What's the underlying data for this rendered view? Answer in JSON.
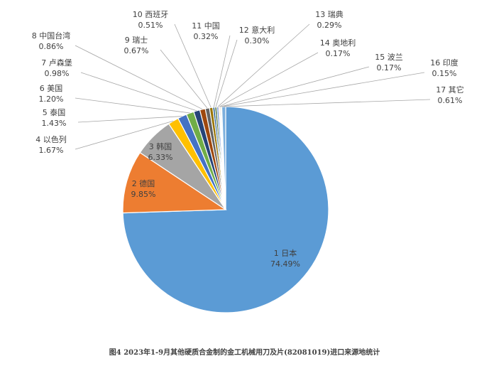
{
  "caption": "图4 2023年1-9月其他硬质合金制的金工机械用刀及片(82081019)进口来源地统计",
  "chart_data": {
    "type": "pie",
    "title": "图4 2023年1-9月其他硬质合金制的金工机械用刀及片(82081019)进口来源地统计",
    "categories": [
      "1 日本",
      "2 德国",
      "3 韩国",
      "4 以色列",
      "5 泰国",
      "6 美国",
      "7 卢森堡",
      "8 中国台湾",
      "9 瑞士",
      "10 西班牙",
      "11 中国",
      "12 意大利",
      "13 瑞典",
      "14 奥地利",
      "15 波兰",
      "16 印度",
      "17 其它"
    ],
    "values": [
      74.49,
      9.85,
      6.33,
      1.67,
      1.43,
      1.2,
      0.98,
      0.86,
      0.67,
      0.51,
      0.32,
      0.3,
      0.29,
      0.17,
      0.17,
      0.15,
      0.61
    ],
    "value_labels": [
      "74.49%",
      "9.85%",
      "6.33%",
      "1.67%",
      "1.43%",
      "1.20%",
      "0.98%",
      "0.86%",
      "0.67%",
      "0.51%",
      "0.32%",
      "0.30%",
      "0.29%",
      "0.17%",
      "0.17%",
      "0.15%",
      "0.61%"
    ],
    "colors": [
      "#5B9BD5",
      "#ED7D31",
      "#A5A5A5",
      "#FFC000",
      "#4472C4",
      "#70AD47",
      "#264478",
      "#9E480E",
      "#636363",
      "#997300",
      "#255E91",
      "#43682B",
      "#698ED0",
      "#F1975A",
      "#B7B7B7",
      "#FFCD33",
      "#7CAFDD"
    ],
    "label_placement": [
      "inside",
      "inside",
      "inside",
      "outside",
      "outside",
      "outside",
      "outside",
      "outside",
      "outside",
      "outside",
      "outside",
      "outside",
      "outside",
      "outside",
      "outside",
      "outside",
      "outside"
    ]
  }
}
